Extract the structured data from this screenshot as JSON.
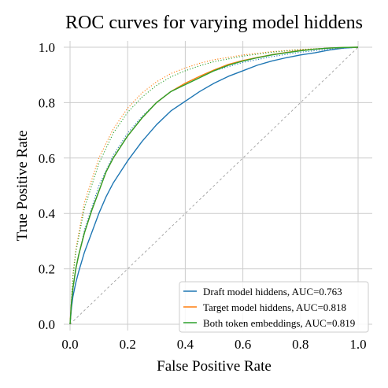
{
  "chart_data": {
    "type": "line",
    "title": "ROC curves for varying model hiddens",
    "xlabel": "False Positive Rate",
    "ylabel": "True Positive Rate",
    "xlim": [
      0,
      1
    ],
    "ylim": [
      0,
      1
    ],
    "xticks": [
      "0.0",
      "0.2",
      "0.4",
      "0.6",
      "0.8",
      "1.0"
    ],
    "yticks": [
      "0.0",
      "0.2",
      "0.4",
      "0.6",
      "0.8",
      "1.0"
    ],
    "grid": true,
    "legend_position": "lower-right",
    "series": [
      {
        "name": "Draft model hiddens, AUC=0.763",
        "color": "#1f77b4",
        "style": "solid",
        "x": [
          0,
          0.005,
          0.01,
          0.02,
          0.03,
          0.05,
          0.075,
          0.1,
          0.125,
          0.15,
          0.2,
          0.25,
          0.3,
          0.35,
          0.4,
          0.45,
          0.5,
          0.55,
          0.6,
          0.65,
          0.7,
          0.75,
          0.8,
          0.85,
          0.9,
          0.95,
          1
        ],
        "y": [
          0,
          0.06,
          0.1,
          0.15,
          0.19,
          0.26,
          0.33,
          0.4,
          0.46,
          0.51,
          0.59,
          0.66,
          0.72,
          0.77,
          0.805,
          0.84,
          0.87,
          0.895,
          0.915,
          0.935,
          0.95,
          0.962,
          0.972,
          0.98,
          0.99,
          0.997,
          1
        ]
      },
      {
        "name": "Target model hiddens, AUC=0.818",
        "color": "#ff7f0e",
        "style": "solid",
        "x": [
          0,
          0.005,
          0.01,
          0.02,
          0.03,
          0.05,
          0.075,
          0.1,
          0.125,
          0.15,
          0.2,
          0.25,
          0.3,
          0.35,
          0.4,
          0.45,
          0.5,
          0.55,
          0.6,
          0.65,
          0.7,
          0.75,
          0.8,
          0.85,
          0.9,
          0.95,
          1
        ],
        "y": [
          0,
          0.08,
          0.13,
          0.2,
          0.25,
          0.33,
          0.41,
          0.48,
          0.55,
          0.6,
          0.68,
          0.745,
          0.8,
          0.84,
          0.87,
          0.895,
          0.918,
          0.938,
          0.952,
          0.963,
          0.973,
          0.981,
          0.988,
          0.993,
          0.997,
          0.999,
          1
        ]
      },
      {
        "name": "Both token embeddings, AUC=0.819",
        "color": "#2ca02c",
        "style": "solid",
        "x": [
          0,
          0.005,
          0.01,
          0.02,
          0.03,
          0.05,
          0.075,
          0.1,
          0.125,
          0.15,
          0.2,
          0.25,
          0.3,
          0.35,
          0.4,
          0.45,
          0.5,
          0.55,
          0.6,
          0.65,
          0.7,
          0.75,
          0.8,
          0.85,
          0.9,
          0.95,
          1
        ],
        "y": [
          0,
          0.08,
          0.13,
          0.2,
          0.25,
          0.33,
          0.41,
          0.48,
          0.55,
          0.6,
          0.68,
          0.745,
          0.8,
          0.84,
          0.865,
          0.89,
          0.915,
          0.935,
          0.95,
          0.962,
          0.972,
          0.98,
          0.987,
          0.993,
          0.997,
          0.999,
          1
        ]
      },
      {
        "color": "#1f77b4",
        "style": "dotted",
        "x": [
          0,
          0.01,
          0.02,
          0.05,
          0.1,
          0.15,
          0.2,
          0.25,
          0.3,
          0.35,
          0.4,
          0.45,
          0.5,
          0.6,
          0.7,
          0.8,
          0.9,
          1
        ],
        "y": [
          0,
          0.13,
          0.2,
          0.34,
          0.5,
          0.61,
          0.69,
          0.75,
          0.8,
          0.84,
          0.87,
          0.895,
          0.915,
          0.945,
          0.966,
          0.982,
          0.993,
          1
        ]
      },
      {
        "color": "#ff7f0e",
        "style": "dotted",
        "x": [
          0,
          0.01,
          0.02,
          0.05,
          0.1,
          0.15,
          0.2,
          0.25,
          0.3,
          0.35,
          0.4,
          0.45,
          0.5,
          0.6,
          0.7,
          0.8,
          0.9,
          1
        ],
        "y": [
          0,
          0.18,
          0.27,
          0.44,
          0.6,
          0.705,
          0.78,
          0.835,
          0.875,
          0.905,
          0.925,
          0.942,
          0.955,
          0.972,
          0.984,
          0.992,
          0.997,
          1
        ]
      },
      {
        "color": "#2ca02c",
        "style": "dotted",
        "x": [
          0,
          0.01,
          0.02,
          0.05,
          0.1,
          0.15,
          0.2,
          0.25,
          0.3,
          0.35,
          0.4,
          0.45,
          0.5,
          0.6,
          0.7,
          0.8,
          0.9,
          1
        ],
        "y": [
          0,
          0.17,
          0.26,
          0.42,
          0.58,
          0.69,
          0.765,
          0.82,
          0.862,
          0.893,
          0.915,
          0.933,
          0.948,
          0.968,
          0.982,
          0.991,
          0.997,
          1
        ]
      },
      {
        "color": "#a0a0a0",
        "style": "dashed",
        "x": [
          0,
          1
        ],
        "y": [
          0,
          1
        ]
      }
    ]
  }
}
